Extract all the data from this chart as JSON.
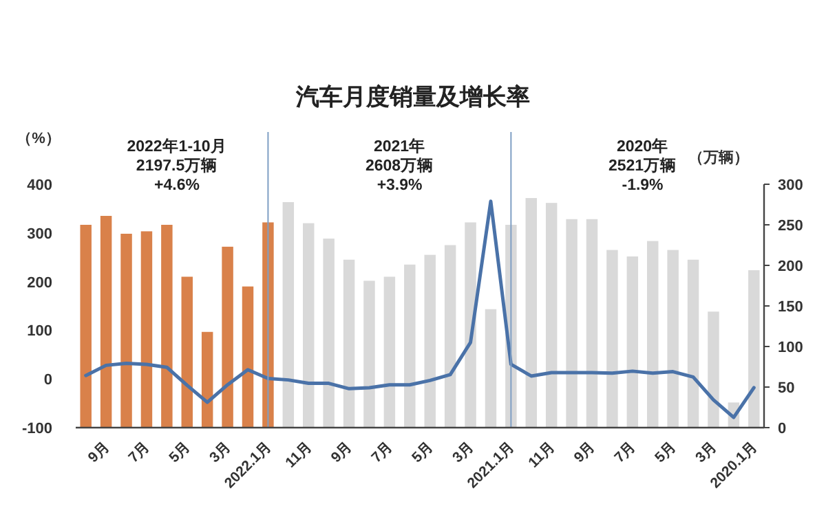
{
  "chart_data": {
    "type": "bar",
    "title": "汽车月度销量及增长率",
    "ylabel": "（%）",
    "y2label": "（万辆）",
    "categories": [
      null,
      "9月",
      null,
      "7月",
      null,
      "5月",
      null,
      "3月",
      null,
      "2022.1月",
      null,
      "11月",
      null,
      "9月",
      null,
      "7月",
      null,
      "5月",
      null,
      "3月",
      null,
      "2021.1月",
      null,
      "11月",
      null,
      "9月",
      null,
      "7月",
      null,
      "5月",
      null,
      "3月",
      null,
      "2020.1月"
    ],
    "series": [
      {
        "axis": "y2",
        "colors": [
          "#d9814a",
          "#d9814a",
          "#d9814a",
          "#d9814a",
          "#d9814a",
          "#d9814a",
          "#d9814a",
          "#d9814a",
          "#d9814a",
          "#d9814a",
          "#d9d9d9",
          "#d9d9d9",
          "#d9d9d9",
          "#d9d9d9",
          "#d9d9d9",
          "#d9d9d9",
          "#d9d9d9",
          "#d9d9d9",
          "#d9d9d9",
          "#d9d9d9",
          "#d9d9d9",
          "#d9d9d9",
          "#d9d9d9",
          "#d9d9d9",
          "#d9d9d9",
          "#d9d9d9",
          "#d9d9d9",
          "#d9d9d9",
          "#d9d9d9",
          "#d9d9d9",
          "#d9d9d9",
          "#d9d9d9",
          "#d9d9d9",
          "#d9d9d9"
        ],
        "values": [
          250,
          261,
          239,
          242,
          250,
          186,
          118,
          223,
          174,
          253,
          278,
          252,
          233,
          207,
          181,
          186,
          201,
          213,
          225,
          253,
          146,
          250,
          283,
          277,
          257,
          257,
          219,
          211,
          230,
          219,
          207,
          143,
          31,
          194
        ]
      },
      {
        "type": "line",
        "color": "#4a72a8",
        "values": [
          7,
          28,
          32,
          30,
          24,
          -13,
          -48,
          -12,
          19,
          1,
          -2,
          -9,
          -9,
          -20,
          -18,
          -12,
          -12,
          -3,
          9,
          75,
          365,
          30,
          6,
          13,
          13,
          13,
          12,
          16,
          12,
          15,
          4,
          -43,
          -79,
          -18
        ]
      }
    ],
    "ylim": [
      -100,
      400
    ],
    "yticks": [
      -100,
      0,
      100,
      200,
      300,
      400
    ],
    "y2lim": [
      0,
      300
    ],
    "y2ticks": [
      0,
      50,
      100,
      150,
      200,
      250,
      300
    ],
    "ref_lines": [
      {
        "axis": "x",
        "value": "2022.1月",
        "color": "#7f9fc4"
      },
      {
        "axis": "x",
        "value": "2021.1月",
        "color": "#7f9fc4"
      }
    ],
    "annotations": [
      "2022年1-10月\n2197.5万辆\n+4.6%",
      "2021年\n2608万辆\n+3.9%",
      "2020年\n2521万辆\n-1.9%"
    ]
  }
}
